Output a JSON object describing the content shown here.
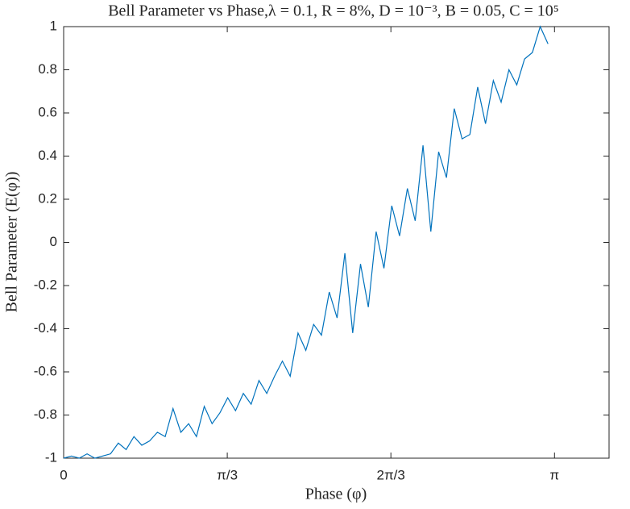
{
  "chart_data": {
    "type": "line",
    "title": "Bell Parameter vs Phase,λ = 0.1, R = 8%, D = 10⁻³, B = 0.05, C = 10⁵",
    "xlabel": "Phase (φ)",
    "ylabel": "Bell Parameter (E(φ))",
    "x": [
      0,
      0.05,
      0.1,
      0.15,
      0.2,
      0.25,
      0.3,
      0.35,
      0.4,
      0.45,
      0.5,
      0.55,
      0.6,
      0.65,
      0.7,
      0.75,
      0.8,
      0.85,
      0.9,
      0.95,
      1,
      1.05,
      1.1,
      1.15,
      1.2,
      1.25,
      1.3,
      1.35,
      1.4,
      1.45,
      1.5,
      1.55,
      1.6,
      1.65,
      1.7,
      1.75,
      1.8,
      1.85,
      1.9,
      1.95,
      2,
      2.05,
      2.1,
      2.15,
      2.2,
      2.25,
      2.3,
      2.35,
      2.4,
      2.45,
      2.5,
      2.55,
      2.6,
      2.65,
      2.7,
      2.75,
      2.8,
      2.85,
      2.9,
      2.95,
      3,
      3.05,
      3.1
    ],
    "series": [
      {
        "name": "E(φ)",
        "color": "#0072bd",
        "values": [
          -1,
          -0.99,
          -1,
          -0.98,
          -1,
          -0.99,
          -0.98,
          -0.93,
          -0.96,
          -0.9,
          -0.94,
          -0.92,
          -0.88,
          -0.9,
          -0.77,
          -0.88,
          -0.84,
          -0.9,
          -0.76,
          -0.84,
          -0.79,
          -0.72,
          -0.78,
          -0.7,
          -0.75,
          -0.64,
          -0.7,
          -0.62,
          -0.55,
          -0.62,
          -0.42,
          -0.5,
          -0.38,
          -0.43,
          -0.23,
          -0.35,
          -0.05,
          -0.42,
          -0.1,
          -0.3,
          0.05,
          -0.12,
          0.17,
          0.03,
          0.25,
          0.1,
          0.45,
          0.05,
          0.42,
          0.3,
          0.62,
          0.48,
          0.5,
          0.72,
          0.55,
          0.75,
          0.65,
          0.8,
          0.73,
          0.85,
          0.88,
          1,
          0.92
        ]
      }
    ],
    "xlim": [
      0,
      3.4907
    ],
    "ylim": [
      -1,
      1
    ],
    "xticks": [
      0,
      {
        "value": 1.0472,
        "label": "π/3"
      },
      {
        "value": 2.0944,
        "label": "2π/3"
      },
      {
        "value": 3.1416,
        "label": "π"
      }
    ],
    "yticks": [
      -1,
      -0.8,
      -0.6,
      -0.4,
      -0.2,
      0,
      0.2,
      0.4,
      0.6,
      0.8,
      1
    ],
    "grid": false
  }
}
